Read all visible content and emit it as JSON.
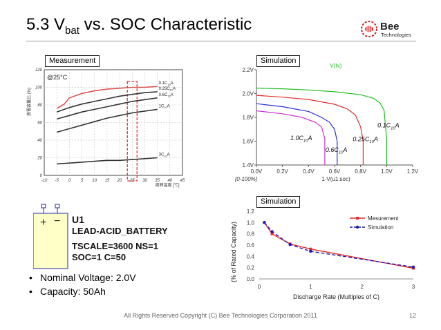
{
  "slide": {
    "title_main": "5.3 V",
    "title_sub": "bat",
    "title_rest": " vs. SOC Characteristic",
    "footer": "All Rights Reserved Copyright (C) Bee Technologies Corporation 2011",
    "page": "12",
    "logo": {
      "word": "Bee",
      "tagline": "Technologies",
      "icon": "bee-icon"
    }
  },
  "panels": {
    "measurement_label": "Measurement",
    "simulation_top_label": "Simulation",
    "simulation_bottom_label": "Simulation"
  },
  "battery_model": {
    "ref": "U1",
    "name": "LEAD-ACID_BATTERY",
    "params1": "TSCALE=3600 NS=1",
    "params2": "SOC=1 C=50",
    "plus": "+",
    "minus": "−"
  },
  "bullets": [
    "Nominal Voltage: 2.0V",
    "Capacity: 50Ah"
  ],
  "chart_data": [
    {
      "type": "line",
      "title": "Measurement",
      "annotation": "@25°C",
      "ylabel": "放電容量比 (%)",
      "xlabel": "周囲温度 [℃]",
      "xlim": [
        -10,
        45
      ],
      "ylim": [
        0,
        120
      ],
      "xticks": [
        "-10",
        "-5",
        "0",
        "5",
        "10",
        "15",
        "20",
        "25",
        "30",
        "35",
        "40",
        "45"
      ],
      "yticks": [
        "0",
        "20",
        "40",
        "60",
        "80",
        "100",
        "120"
      ],
      "highlight_x": 25,
      "grid": true,
      "series": [
        {
          "name": "0.1C10A",
          "color": "#d9534f",
          "x": [
            -5,
            -2,
            0,
            5,
            10,
            15,
            20,
            25,
            30,
            35
          ],
          "y": [
            76,
            81,
            88,
            93,
            96,
            98,
            99,
            100,
            100,
            101
          ]
        },
        {
          "name": "0.25C10A",
          "color": "#333333",
          "x": [
            -5,
            0,
            5,
            10,
            15,
            20,
            25,
            30,
            35
          ],
          "y": [
            72,
            77,
            81,
            84,
            87,
            90,
            92,
            94,
            95
          ]
        },
        {
          "name": "0.6C10A",
          "color": "#333333",
          "x": [
            -5,
            0,
            5,
            10,
            15,
            20,
            25,
            30,
            35
          ],
          "y": [
            64,
            68,
            72,
            75,
            78,
            81,
            84,
            86,
            88
          ]
        },
        {
          "name": "1C10A",
          "color": "#333333",
          "x": [
            -5,
            0,
            5,
            10,
            15,
            20,
            25,
            30,
            35
          ],
          "y": [
            49,
            53,
            57,
            61,
            65,
            68,
            71,
            73,
            75
          ]
        },
        {
          "name": "3C10A",
          "color": "#333333",
          "x": [
            -5,
            0,
            5,
            10,
            15,
            20,
            25,
            30,
            35
          ],
          "y": [
            13,
            14,
            15,
            16,
            17,
            17,
            18,
            19,
            20
          ]
        }
      ]
    },
    {
      "type": "line",
      "title": "Simulation",
      "trace_label": "V(hi)",
      "xlabel": "1-V(u1:soc)",
      "range_label": "[0-100%]",
      "xlim": [
        0,
        1.2
      ],
      "ylim": [
        1.4,
        2.2
      ],
      "xticks": [
        "0.0V",
        "0.2V",
        "0.4V",
        "0.6V",
        "0.8V",
        "1.0V",
        "1.2V"
      ],
      "yticks": [
        "1.4V",
        "1.6V",
        "1.8V",
        "2.0V",
        "2.2V"
      ],
      "series": [
        {
          "name": "0.1C10A",
          "color": "#1fbf1f",
          "x": [
            0,
            0.2,
            0.4,
            0.6,
            0.8,
            0.9,
            0.95,
            0.98,
            1.0,
            1.0
          ],
          "y": [
            2.045,
            2.04,
            2.03,
            2.015,
            1.99,
            1.96,
            1.92,
            1.86,
            1.62,
            1.4
          ]
        },
        {
          "name": "0.25C10A",
          "color": "#e02a2a",
          "x": [
            0,
            0.2,
            0.4,
            0.6,
            0.7,
            0.76,
            0.8,
            0.82,
            0.82
          ],
          "y": [
            1.985,
            1.97,
            1.95,
            1.91,
            1.87,
            1.82,
            1.72,
            1.6,
            1.4
          ]
        },
        {
          "name": "0.6C10A",
          "color": "#2a2ad8",
          "x": [
            0,
            0.2,
            0.4,
            0.5,
            0.56,
            0.6,
            0.62,
            0.62
          ],
          "y": [
            1.915,
            1.89,
            1.85,
            1.8,
            1.76,
            1.7,
            1.6,
            1.4
          ]
        },
        {
          "name": "1.0C10A",
          "color": "#cf2fcf",
          "x": [
            0,
            0.2,
            0.35,
            0.45,
            0.5,
            0.525,
            0.525
          ],
          "y": [
            1.855,
            1.83,
            1.8,
            1.76,
            1.72,
            1.62,
            1.4
          ]
        }
      ],
      "labels": [
        "0.1C10A",
        "0.25C10A",
        "0.6C10A",
        "1.0C10A"
      ]
    },
    {
      "type": "line",
      "title": "Simulation",
      "xlabel": "Discharge Rate (Multiples of C)",
      "ylabel": "(% of Rated Capacity)",
      "xlim": [
        0,
        3
      ],
      "ylim": [
        0,
        1.2
      ],
      "xticks": [
        "0",
        "1",
        "2",
        "3"
      ],
      "yticks": [
        "0.0",
        "0.2",
        "0.4",
        "0.6",
        "0.8",
        "1.0",
        "1.2"
      ],
      "legend": "top-right",
      "series": [
        {
          "name": "Mesurement",
          "color": "#e02a2a",
          "x": [
            0.1,
            0.25,
            0.6,
            1.0,
            3.0
          ],
          "y": [
            1.0,
            0.8,
            0.62,
            0.53,
            0.19
          ]
        },
        {
          "name": "Simulation",
          "color": "#1a1ab8",
          "x": [
            0.1,
            0.25,
            0.6,
            1.0,
            3.0
          ],
          "y": [
            1.0,
            0.84,
            0.61,
            0.49,
            0.21
          ]
        }
      ]
    }
  ]
}
